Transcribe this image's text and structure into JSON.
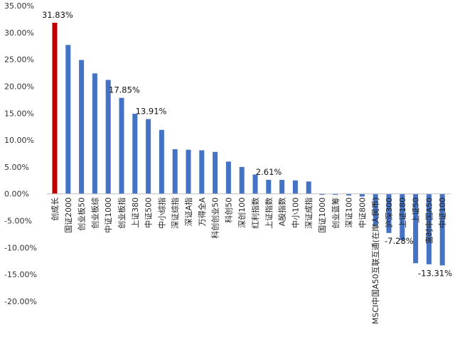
{
  "chart_data": {
    "type": "bar",
    "title": "",
    "xlabel": "",
    "ylabel": "",
    "ylim": [
      -20,
      35
    ],
    "yticks": [
      "35.00%",
      "30.00%",
      "25.00%",
      "20.00%",
      "15.00%",
      "10.00%",
      "5.00%",
      "0.00%",
      "-5.00%",
      "-10.00%",
      "-15.00%",
      "-20.00%"
    ],
    "grid": false,
    "legend": "none",
    "colors": {
      "bar": "#4472C4",
      "highlight": "#C00000",
      "axis": "#bfbfbf"
    },
    "categories": [
      "创成长",
      "国证2000",
      "创业板50",
      "创业板综",
      "中证1000",
      "创业板指",
      "上证380",
      "中证500",
      "中小综指",
      "深证综指",
      "深证A指",
      "万得全A",
      "科创创业50",
      "科创50",
      "深创100",
      "红利指数",
      "上证指数",
      "A股指数",
      "中小100",
      "深证成指",
      "国证1000",
      "创业蓝筹",
      "深证100",
      "中证800",
      "MSCI中国A50互联互通(在岸人民币)",
      "沪深300",
      "上证180",
      "上证50",
      "富时中国A50",
      "中证100"
    ],
    "values": [
      31.83,
      27.7,
      24.9,
      22.4,
      21.2,
      17.85,
      14.9,
      13.91,
      11.9,
      8.3,
      8.2,
      8.1,
      7.8,
      6.0,
      5.0,
      3.6,
      2.61,
      2.6,
      2.5,
      2.3,
      -0.2,
      -0.2,
      -0.3,
      -0.5,
      -6.0,
      -7.28,
      -8.6,
      -12.9,
      -13.1,
      -13.31
    ],
    "highlight_index": 0,
    "data_labels": [
      {
        "index": 0,
        "text": "31.83%"
      },
      {
        "index": 5,
        "text": "17.85%"
      },
      {
        "index": 7,
        "text": "13.91%"
      },
      {
        "index": 16,
        "text": "2.61%"
      },
      {
        "index": 25,
        "text": "-7.28%"
      },
      {
        "index": 29,
        "text": "-13.31%"
      }
    ]
  }
}
